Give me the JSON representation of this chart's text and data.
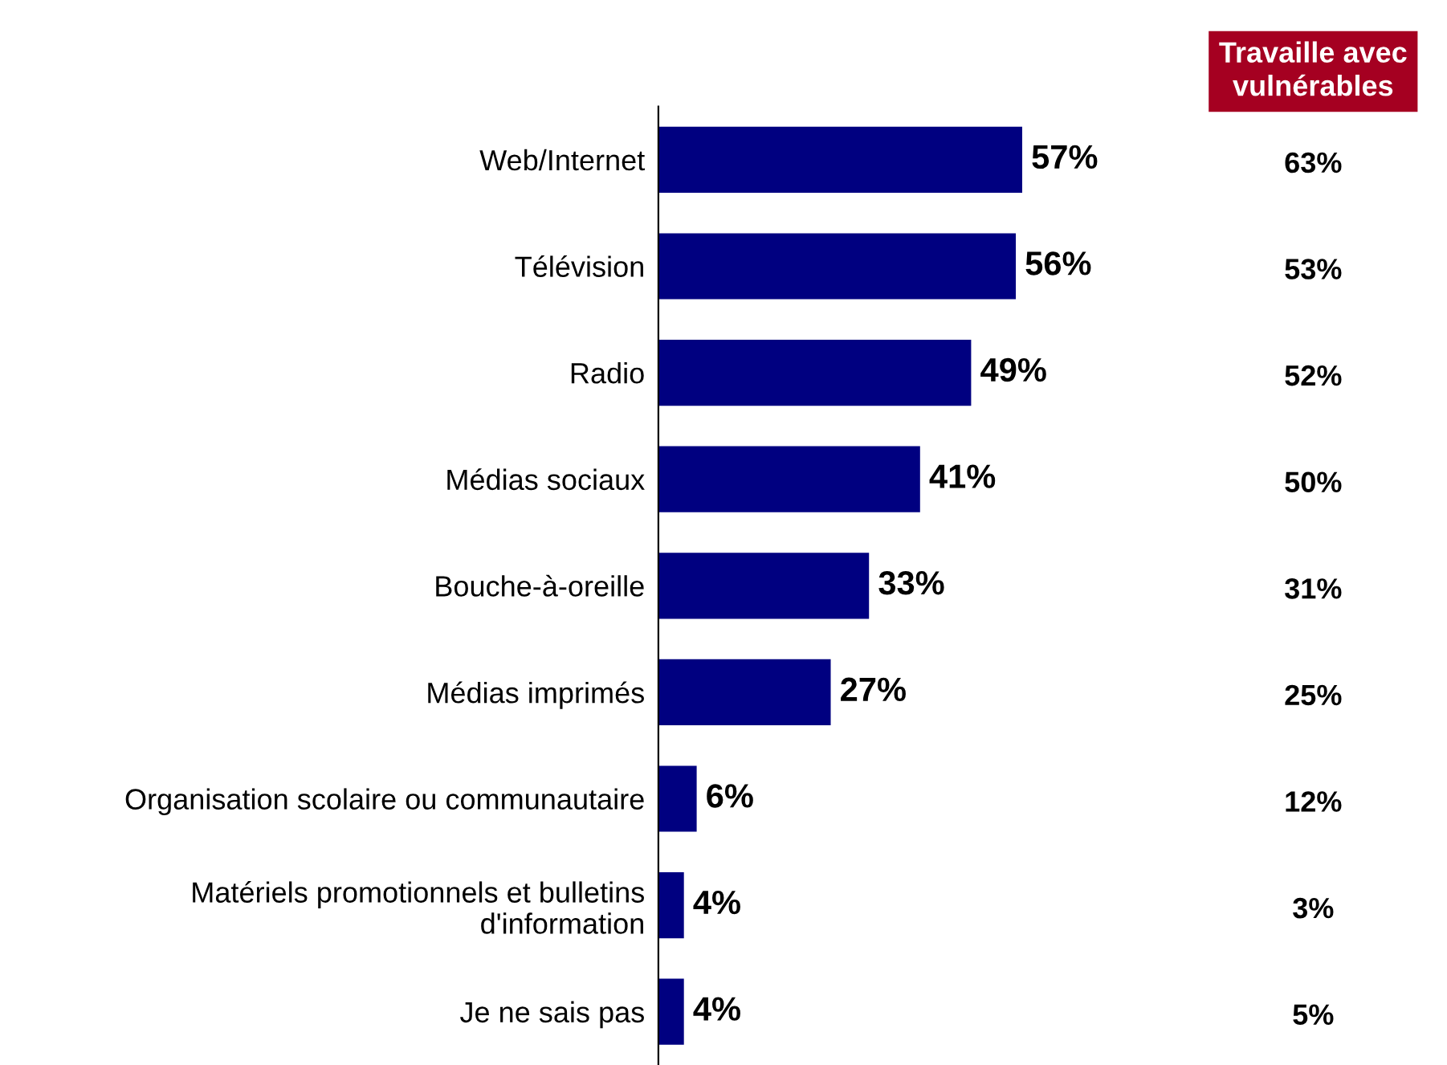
{
  "chart_data": [
    {
      "type": "bar",
      "orientation": "horizontal",
      "categories": [
        "Web/Internet",
        "Télévision",
        "Radio",
        "Médias sociaux",
        "Bouche-à-oreille",
        "Médias imprimés",
        "Organisation scolaire ou communautaire",
        "Matériels promotionnels et bulletins\nd'information",
        "Je ne sais pas"
      ],
      "values": [
        57,
        56,
        49,
        41,
        33,
        27,
        6,
        4,
        4
      ],
      "color": "#000080",
      "value_labels": [
        "57%",
        "56%",
        "49%",
        "41%",
        "33%",
        "27%",
        "6%",
        "4%",
        "4%"
      ],
      "tick_labels": "y",
      "grid": false,
      "legend": false
    },
    {
      "type": "other",
      "title": "Travaille avec vulnérables",
      "categories": [
        null,
        null,
        null,
        null,
        null,
        null,
        null,
        null,
        null
      ],
      "values": [
        63,
        53,
        52,
        50,
        31,
        25,
        12,
        3,
        5
      ],
      "value_labels": [
        "63%",
        "53%",
        "52%",
        "50%",
        "31%",
        "25%",
        "12%",
        "3%",
        "5%"
      ],
      "color": "#a50021"
    }
  ]
}
